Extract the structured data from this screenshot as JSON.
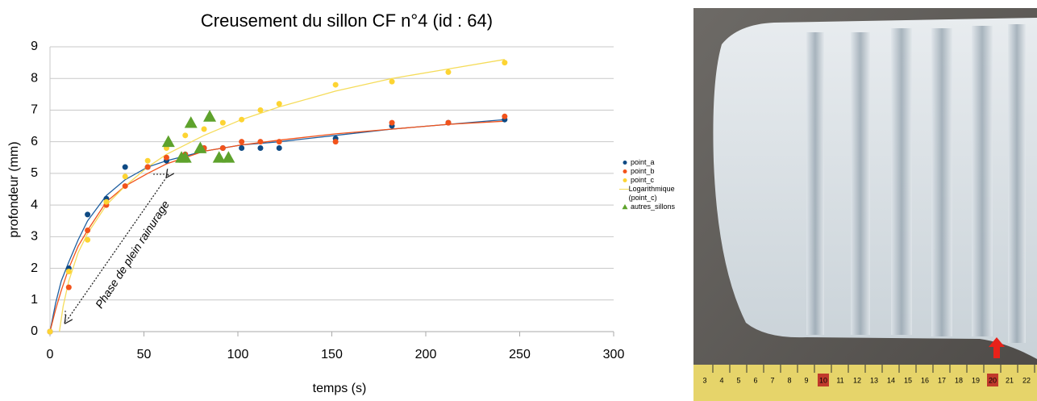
{
  "chart_data": {
    "type": "scatter",
    "title": "Creusement du sillon CF n°4 (id : 64)",
    "xlabel": "temps (s)",
    "ylabel": "profondeur (mm)",
    "xlim": [
      0,
      300
    ],
    "xticks": [
      0,
      50,
      100,
      150,
      200,
      250,
      300
    ],
    "ylim": [
      0,
      9
    ],
    "yticks": [
      0,
      1,
      2,
      3,
      4,
      5,
      6,
      7,
      8,
      9
    ],
    "grid": true,
    "legend": "right",
    "annotation": "Phase de plein rainurage",
    "series": [
      {
        "name": "point_a",
        "color": "#0e4a84",
        "marker": "circle",
        "x": [
          0,
          10,
          20,
          30,
          40,
          52,
          62,
          72,
          82,
          92,
          102,
          112,
          122,
          152,
          182,
          212,
          242
        ],
        "values": [
          0,
          2.0,
          3.7,
          4.2,
          5.2,
          5.2,
          5.4,
          5.6,
          5.8,
          5.8,
          5.8,
          5.8,
          5.8,
          6.1,
          6.5,
          6.6,
          6.7
        ]
      },
      {
        "name": "point_b",
        "color": "#f2531b",
        "marker": "circle",
        "x": [
          0,
          10,
          20,
          30,
          40,
          52,
          62,
          72,
          82,
          92,
          102,
          112,
          122,
          152,
          182,
          212,
          242
        ],
        "values": [
          0,
          1.4,
          3.2,
          4.0,
          4.6,
          5.2,
          5.5,
          5.6,
          5.8,
          5.8,
          6.0,
          6.0,
          6.0,
          6.0,
          6.6,
          6.6,
          6.8
        ]
      },
      {
        "name": "point_c",
        "color": "#fdd432",
        "marker": "circle",
        "x": [
          0,
          10,
          20,
          30,
          40,
          52,
          62,
          72,
          82,
          92,
          102,
          112,
          122,
          152,
          182,
          212,
          242
        ],
        "values": [
          0,
          1.9,
          2.9,
          4.1,
          4.9,
          5.4,
          5.8,
          6.2,
          6.4,
          6.6,
          6.7,
          7.0,
          7.2,
          7.8,
          7.9,
          8.2,
          8.5
        ]
      },
      {
        "name": "Logarithmique (point_c)",
        "color": "#f5dc5a",
        "marker": "line",
        "x": [
          5,
          7,
          10,
          15,
          20,
          30,
          40,
          52,
          62,
          82,
          102,
          122,
          152,
          182,
          212,
          242
        ],
        "values": [
          0,
          0.8,
          1.6,
          2.5,
          3.1,
          4.0,
          4.6,
          5.2,
          5.6,
          6.2,
          6.7,
          7.1,
          7.6,
          8.0,
          8.3,
          8.6
        ]
      },
      {
        "name": "autres_sillons",
        "color": "#5ea22c",
        "marker": "triangle",
        "x": [
          63,
          75,
          85,
          70,
          72,
          80,
          90,
          95
        ],
        "values": [
          6.0,
          6.6,
          6.8,
          5.5,
          5.5,
          5.8,
          5.5,
          5.5
        ]
      }
    ],
    "trendlines": [
      {
        "color": "#1f5fa0",
        "x": [
          0,
          3,
          6,
          10,
          15,
          20,
          30,
          40,
          52,
          62,
          82,
          102,
          122,
          152,
          182,
          212,
          242
        ],
        "values": [
          0,
          0.9,
          1.6,
          2.2,
          2.9,
          3.5,
          4.3,
          4.8,
          5.2,
          5.4,
          5.7,
          5.9,
          6.0,
          6.2,
          6.4,
          6.55,
          6.7
        ]
      },
      {
        "color": "#f2531b",
        "x": [
          0,
          3,
          6,
          10,
          15,
          20,
          30,
          40,
          52,
          62,
          82,
          102,
          122,
          152,
          182,
          212,
          242
        ],
        "values": [
          0,
          0.7,
          1.3,
          2.0,
          2.7,
          3.2,
          4.1,
          4.6,
          5.0,
          5.3,
          5.7,
          5.9,
          6.05,
          6.25,
          6.4,
          6.55,
          6.65
        ]
      }
    ]
  },
  "photo": {
    "ruler_labels": [
      "3",
      "4",
      "5",
      "6",
      "7",
      "8",
      "9",
      "10",
      "11",
      "12",
      "13",
      "14",
      "15",
      "16",
      "17",
      "18",
      "19",
      "20",
      "21",
      "22"
    ]
  }
}
